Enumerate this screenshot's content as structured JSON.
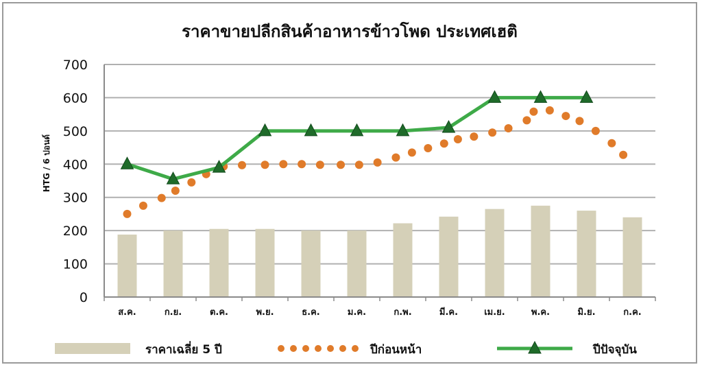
{
  "chart_data": {
    "type": "bar+line",
    "title": "ราคาขายปลีกสินค้าอาหารข้าวโพด ประเทศเฮติ",
    "ylabel": "HTG / 6 ปอนด์",
    "xlabel": "",
    "ylim": [
      0,
      700
    ],
    "yticks": [
      "0",
      "100",
      "200",
      "300",
      "400",
      "500",
      "600",
      "700"
    ],
    "grid": true,
    "legend_position": "bottom",
    "categories": [
      "ส.ค.",
      "ก.ย.",
      "ต.ค.",
      "พ.ย.",
      "ธ.ค.",
      "ม.ค.",
      "ก.พ.",
      "มี.ค.",
      "เม.ย.",
      "พ.ค.",
      "มิ.ย.",
      "ก.ค."
    ],
    "series": [
      {
        "name": "ราคาเฉลี่ย 5 ปี",
        "kind": "bar",
        "color": "#d5d0b8",
        "values": [
          188,
          200,
          205,
          205,
          200,
          200,
          222,
          242,
          265,
          275,
          260,
          240
        ]
      },
      {
        "name": "ปีก่อนหน้า",
        "kind": "dotted-line",
        "color": "#e07b2a",
        "x": [
          0,
          0.35,
          0.75,
          1.05,
          1.4,
          1.72,
          2.1,
          2.5,
          3.0,
          3.4,
          3.8,
          4.2,
          4.65,
          5.05,
          5.45,
          5.85,
          6.2,
          6.55,
          6.9,
          7.2,
          7.55,
          7.95,
          8.3,
          8.7,
          8.85,
          9.2,
          9.55,
          9.85,
          10.2,
          10.55,
          10.8
        ],
        "values": [
          250,
          275,
          298,
          320,
          345,
          370,
          393,
          397,
          398,
          400,
          400,
          398,
          398,
          398,
          405,
          420,
          435,
          448,
          462,
          475,
          483,
          495,
          508,
          532,
          558,
          562,
          545,
          530,
          500,
          463,
          428
        ]
      },
      {
        "name": "ปีปัจจุบัน",
        "kind": "line-marker",
        "color": "#3eaa48",
        "values": [
          400,
          355,
          390,
          500,
          500,
          500,
          500,
          510,
          600,
          600,
          600,
          null
        ]
      }
    ]
  }
}
